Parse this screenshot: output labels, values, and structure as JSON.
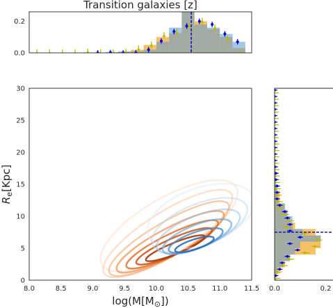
{
  "title": "Transition galaxies [z]",
  "colors": {
    "orange": "#f5a623",
    "blue": "#5b9bd5",
    "mix": "#c8956a",
    "err_yellow": "#b8b800",
    "err_blue": "#0000ee",
    "median_blue": "#1a1aa8",
    "axis": "#262626"
  },
  "chart_data": [
    {
      "id": "top-hist",
      "type": "bar",
      "title": "Transition galaxies [z]",
      "xlim": [
        8.0,
        11.5
      ],
      "ylim": [
        0,
        0.26
      ],
      "yticks": [
        0.0,
        0.2
      ],
      "ytick_labels": [
        "0.0",
        "0.2"
      ],
      "bin_edges": [
        8.0,
        8.2,
        8.4,
        8.6,
        8.8,
        9.0,
        9.2,
        9.4,
        9.6,
        9.8,
        10.0,
        10.2,
        10.4,
        10.6,
        10.8,
        11.0,
        11.2,
        11.4
      ],
      "series": [
        {
          "name": "",
          "color": "orange",
          "values": [
            0.0,
            0.0,
            0.0,
            0.0,
            0.002,
            0.0,
            0.002,
            0.005,
            0.02,
            0.05,
            0.1,
            0.125,
            0.26,
            0.2,
            0.15,
            0.1,
            0.03
          ]
        },
        {
          "name": "",
          "color": "blue",
          "values": [
            0.0,
            0.0,
            0.0,
            0.0,
            0.0,
            0.0,
            0.005,
            0.01,
            0.01,
            0.02,
            0.07,
            0.16,
            0.26,
            0.18,
            0.16,
            0.12,
            0.07
          ]
        }
      ],
      "points_yellow": [
        0.0,
        0.0,
        0.0,
        0.0,
        0.005,
        0.0,
        0.0,
        0.005,
        0.025,
        0.05,
        0.11,
        0.13,
        0.17,
        0.2,
        0.16,
        0.09,
        0.0
      ],
      "points_blue": [
        null,
        null,
        null,
        null,
        null,
        0.0,
        0.002,
        0.0,
        0.0,
        0.02,
        0.075,
        0.135,
        0.17,
        0.2,
        0.18,
        0.12,
        0.07
      ],
      "median_x": 10.55
    },
    {
      "id": "main-kde",
      "type": "contour",
      "xlabel": "log(M[M_⊙])",
      "ylabel": "R_e[Kpc]",
      "xlim": [
        8.0,
        11.5
      ],
      "ylim": [
        0,
        30
      ],
      "xticks": [
        8.0,
        8.5,
        9.0,
        9.5,
        10.0,
        10.5,
        11.0,
        11.5
      ],
      "xtick_labels": [
        "8.0",
        "8.5",
        "9.0",
        "9.5",
        "10.0",
        "10.5",
        "11.0",
        "11.5"
      ],
      "yticks": [
        0,
        5,
        10,
        15,
        20,
        25,
        30
      ],
      "ytick_labels": [
        "0",
        "5",
        "10",
        "15",
        "20",
        "25",
        "30"
      ],
      "series": [
        {
          "name": "",
          "cmap": "oranges",
          "levels": [
            {
              "cx": 10.3,
              "cy": 5.0,
              "rx": 0.5,
              "ry": 1.6,
              "angle": 22,
              "color": "#a63603",
              "opacity": 0.9
            },
            {
              "cx": 10.28,
              "cy": 5.3,
              "rx": 0.65,
              "ry": 2.3,
              "angle": 24,
              "color": "#c94f10",
              "opacity": 0.85
            },
            {
              "cx": 10.25,
              "cy": 5.6,
              "rx": 0.8,
              "ry": 3.0,
              "angle": 26,
              "color": "#e06a22",
              "opacity": 0.8
            },
            {
              "cx": 10.22,
              "cy": 6.0,
              "rx": 0.95,
              "ry": 3.9,
              "angle": 28,
              "color": "#ef8a45",
              "opacity": 0.7
            },
            {
              "cx": 10.2,
              "cy": 6.5,
              "rx": 1.08,
              "ry": 4.9,
              "angle": 30,
              "color": "#f6a66d",
              "opacity": 0.6
            },
            {
              "cx": 10.18,
              "cy": 7.3,
              "rx": 1.18,
              "ry": 6.2,
              "angle": 32,
              "color": "#fbc197",
              "opacity": 0.5
            },
            {
              "cx": 10.2,
              "cy": 8.5,
              "rx": 1.22,
              "ry": 8.0,
              "angle": 30,
              "color": "#fdd9bd",
              "opacity": 0.45
            }
          ]
        },
        {
          "name": "",
          "cmap": "blues",
          "levels": [
            {
              "cx": 10.6,
              "cy": 5.6,
              "rx": 0.32,
              "ry": 1.4,
              "angle": 18,
              "color": "#2b6cb3",
              "opacity": 0.9
            },
            {
              "cx": 10.62,
              "cy": 6.2,
              "rx": 0.45,
              "ry": 2.3,
              "angle": 20,
              "color": "#4a8bc6",
              "opacity": 0.8
            },
            {
              "cx": 10.64,
              "cy": 6.8,
              "rx": 0.58,
              "ry": 3.3,
              "angle": 22,
              "color": "#6fa6d5",
              "opacity": 0.7
            },
            {
              "cx": 10.66,
              "cy": 7.6,
              "rx": 0.7,
              "ry": 4.5,
              "angle": 22,
              "color": "#95bfe2",
              "opacity": 0.55
            },
            {
              "cx": 10.68,
              "cy": 8.6,
              "rx": 0.8,
              "ry": 6.0,
              "angle": 22,
              "color": "#b9d5ee",
              "opacity": 0.5
            },
            {
              "cx": 10.7,
              "cy": 10.0,
              "rx": 0.88,
              "ry": 8.0,
              "angle": 20,
              "color": "#d6e6f5",
              "opacity": 0.45
            }
          ]
        }
      ]
    },
    {
      "id": "right-hist",
      "type": "bar",
      "orientation": "horizontal",
      "ylim": [
        0,
        30
      ],
      "xlim": [
        0,
        0.2
      ],
      "xticks": [
        0.0,
        0.2
      ],
      "xtick_labels": [
        "0.0",
        "0.2"
      ],
      "bin_edges": [
        0,
        1,
        2,
        3,
        4,
        5,
        6,
        7,
        8,
        9,
        10,
        11,
        12,
        13,
        14,
        15,
        16,
        17,
        18,
        19,
        20,
        21,
        22,
        23,
        24,
        25,
        26,
        27,
        28,
        29,
        30
      ],
      "series": [
        {
          "name": "",
          "color": "orange",
          "values": [
            0.005,
            0.02,
            0.04,
            0.06,
            0.16,
            0.18,
            0.18,
            0.16,
            0.08,
            0.06,
            0.05,
            0.04,
            0.02,
            0.02,
            0.01,
            0.005,
            0.005,
            0.002,
            0.002,
            0.0,
            0.0,
            0.0,
            0.0,
            0.0,
            0.0,
            0.0,
            0.0,
            0.0,
            0.0,
            0.0
          ]
        },
        {
          "name": "",
          "color": "blue",
          "values": [
            0.002,
            0.01,
            0.03,
            0.06,
            0.08,
            0.1,
            0.18,
            0.11,
            0.07,
            0.07,
            0.05,
            0.04,
            0.01,
            0.01,
            0.01,
            0.005,
            0.005,
            0.002,
            0.0,
            0.0,
            0.0,
            0.0,
            0.0,
            0.0,
            0.0,
            0.0,
            0.0,
            0.0,
            0.0,
            0.0
          ]
        }
      ],
      "points_yellow": [
        0.006,
        0.012,
        0.035,
        0.06,
        0.12,
        0.16,
        0.17,
        0.12,
        0.05,
        0.06,
        0.04,
        0.02,
        0.015,
        0.012,
        0.008,
        0.005,
        0.004,
        0.003,
        0.002,
        0.002,
        0.002,
        0.002,
        0.0,
        0.0,
        0.0,
        0.0,
        0.0,
        0.0,
        0.0,
        0.0
      ],
      "points_blue": [
        0.004,
        0.02,
        0.03,
        0.05,
        0.09,
        0.06,
        0.1,
        0.06,
        0.06,
        0.05,
        0.04,
        0.02,
        0.01,
        0.01,
        0.01,
        0.005,
        0.005,
        0.002,
        0.0,
        0.0,
        0.0,
        0.0,
        0.0,
        0.0,
        0.0,
        0.0,
        0.0,
        0.0,
        0.0,
        0.0
      ],
      "median_y": 7.5
    }
  ]
}
